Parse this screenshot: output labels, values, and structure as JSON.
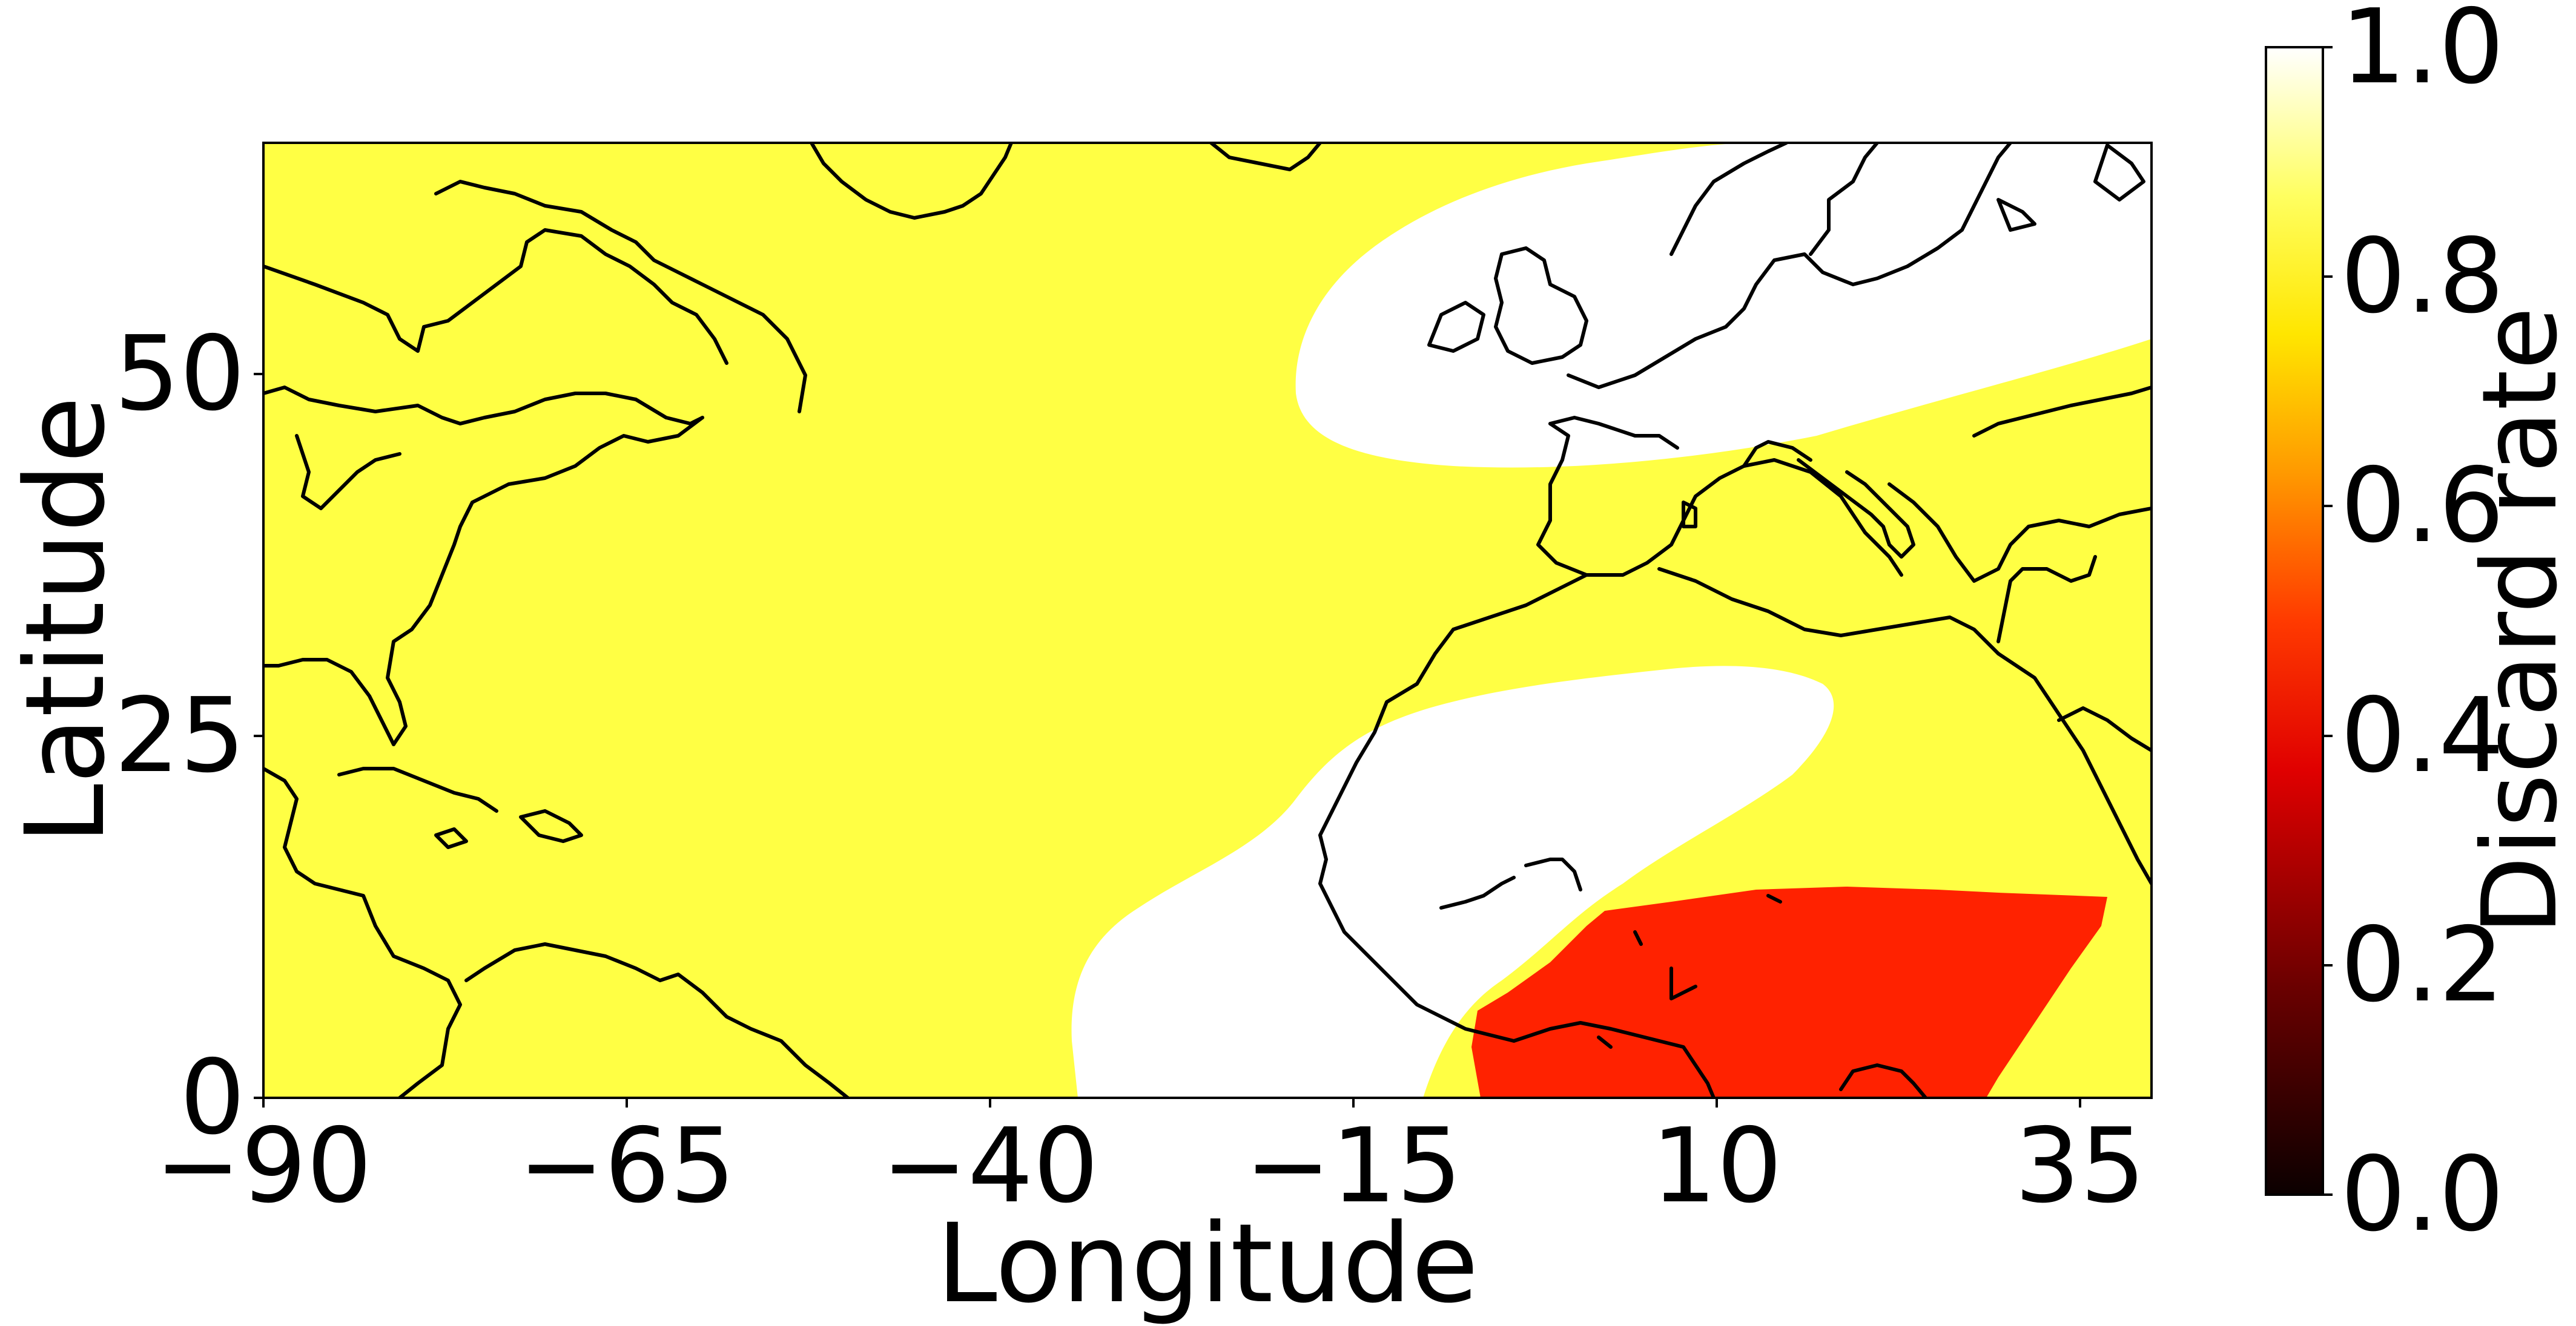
{
  "map": {
    "xlabel": "Longitude",
    "ylabel": "Latitude",
    "xticks": [
      -90,
      -65,
      -40,
      -15,
      10,
      35
    ],
    "yticks": [
      0,
      25,
      50
    ],
    "xlim": [
      -90,
      40
    ],
    "ylim": [
      0,
      66
    ],
    "xtick_labels": [
      "−90",
      "−65",
      "−40",
      "−15",
      "10",
      "35"
    ],
    "ytick_labels": [
      "0",
      "25",
      "50"
    ],
    "colors": {
      "high": "#ffff44",
      "max": "#ffffff",
      "mid": "#ff2200",
      "coast": "#000000"
    }
  },
  "colorbar": {
    "label": "Discard rate",
    "ticks": [
      "0.0",
      "0.2",
      "0.4",
      "0.6",
      "0.8",
      "1.0"
    ],
    "colormap": "hot",
    "range": [
      0,
      1
    ]
  },
  "chart_data": {
    "type": "heatmap",
    "xlabel": "Longitude",
    "ylabel": "Latitude",
    "xlim": [
      -90,
      40
    ],
    "ylim": [
      0,
      66
    ],
    "colorbar_label": "Discard rate",
    "colorbar_range": [
      0.0,
      1.0
    ],
    "regions": [
      {
        "description_value": 0.8,
        "area": "background"
      },
      {
        "description_value": 1.0,
        "area": "north-east"
      },
      {
        "description_value": 1.0,
        "area": "west-africa"
      },
      {
        "description_value": 0.3,
        "area": "gulf-of-guinea"
      }
    ]
  }
}
